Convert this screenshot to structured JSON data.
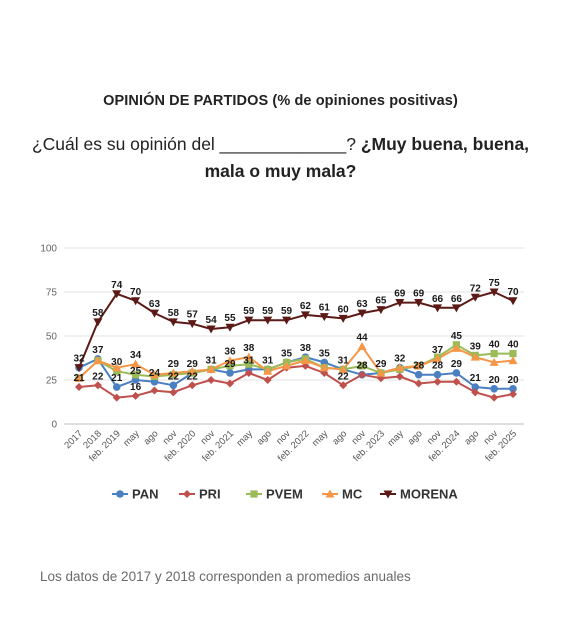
{
  "header": {
    "title": "OPINIÓN DE PARTIDOS (% de opiniones positivas)",
    "question_plain": "¿Cuál es su opinión del _____________?",
    "question_bold": "¿Muy buena, buena, mala o muy mala?"
  },
  "footnote": "Los datos de 2017 y 2018 corresponden a promedios anuales",
  "chart_data": {
    "type": "line",
    "title": "OPINIÓN DE PARTIDOS (% de opiniones positivas)",
    "categories": [
      "2017",
      "2018",
      "feb. 2019",
      "may",
      "ago",
      "nov",
      "feb. 2020",
      "nov",
      "feb. 2021",
      "may",
      "ago",
      "nov",
      "feb. 2022",
      "may",
      "ago",
      "nov",
      "feb. 2023",
      "may",
      "ago",
      "nov",
      "feb. 2024",
      "ago",
      "nov",
      "feb. 2025"
    ],
    "x_tick_labels": [
      "2017",
      "2018",
      "feb. 2019",
      "may",
      "ago",
      "nov",
      "feb. 2020",
      "nov",
      "feb. 2021",
      "may",
      "ago",
      "nov",
      "feb. 2022",
      "may",
      "ago",
      "nov",
      "feb. 2023",
      "may",
      "ago",
      "nov",
      "feb. 2024",
      "ago",
      "nov",
      "feb. 2025"
    ],
    "ylim": [
      0,
      100
    ],
    "yticks": [
      0,
      25,
      50,
      75,
      100
    ],
    "grid": true,
    "legend_position": "bottom",
    "series": [
      {
        "name": "PAN",
        "color": "#4a7fc1",
        "marker": "circle",
        "values": [
          32,
          37,
          21,
          25,
          24,
          22,
          29,
          31,
          29,
          31,
          31,
          35,
          38,
          35,
          31,
          28,
          29,
          32,
          28,
          28,
          29,
          21,
          20,
          20
        ],
        "labels": [
          32,
          37,
          21,
          25,
          24,
          22,
          null,
          31,
          29,
          31,
          31,
          35,
          38,
          35,
          31,
          28,
          29,
          32,
          28,
          28,
          29,
          21,
          20,
          20
        ]
      },
      {
        "name": "PRI",
        "color": "#c0504d",
        "marker": "diamond",
        "values": [
          21,
          22,
          15,
          16,
          19,
          18,
          22,
          25,
          23,
          29,
          25,
          32,
          33,
          29,
          22,
          28,
          26,
          27,
          23,
          24,
          24,
          18,
          15,
          17
        ],
        "labels": [
          21,
          22,
          null,
          16,
          null,
          null,
          22,
          null,
          null,
          null,
          null,
          null,
          null,
          null,
          22,
          null,
          null,
          null,
          null,
          null,
          null,
          null,
          null,
          null
        ]
      },
      {
        "name": "PVEM",
        "color": "#9bbb59",
        "marker": "square",
        "values": [
          26,
          36,
          30,
          28,
          27,
          28,
          29,
          31,
          33,
          34,
          31,
          35,
          37,
          32,
          31,
          33,
          29,
          31,
          33,
          38,
          45,
          39,
          40,
          40
        ],
        "labels": [
          null,
          null,
          30,
          null,
          null,
          null,
          29,
          null,
          null,
          null,
          null,
          null,
          null,
          null,
          null,
          null,
          null,
          null,
          null,
          null,
          45,
          39,
          40,
          40
        ]
      },
      {
        "name": "MC",
        "color": "#f79646",
        "marker": "triangle",
        "values": [
          26,
          36,
          32,
          34,
          28,
          29,
          30,
          31,
          36,
          38,
          30,
          33,
          36,
          32,
          31,
          44,
          29,
          32,
          33,
          37,
          43,
          38,
          35,
          36
        ],
        "labels": [
          null,
          null,
          null,
          34,
          null,
          29,
          null,
          null,
          36,
          38,
          null,
          null,
          null,
          null,
          null,
          44,
          null,
          null,
          null,
          37,
          null,
          null,
          null,
          null
        ]
      },
      {
        "name": "MORENA",
        "color": "#5c1a16",
        "marker": "triangle-down",
        "values": [
          32,
          58,
          74,
          70,
          63,
          58,
          57,
          54,
          55,
          59,
          59,
          59,
          62,
          61,
          60,
          63,
          65,
          69,
          69,
          66,
          66,
          72,
          75,
          70
        ],
        "labels": [
          null,
          58,
          74,
          70,
          63,
          58,
          57,
          54,
          55,
          59,
          59,
          59,
          62,
          61,
          60,
          63,
          65,
          69,
          69,
          66,
          66,
          72,
          75,
          70
        ]
      }
    ]
  }
}
